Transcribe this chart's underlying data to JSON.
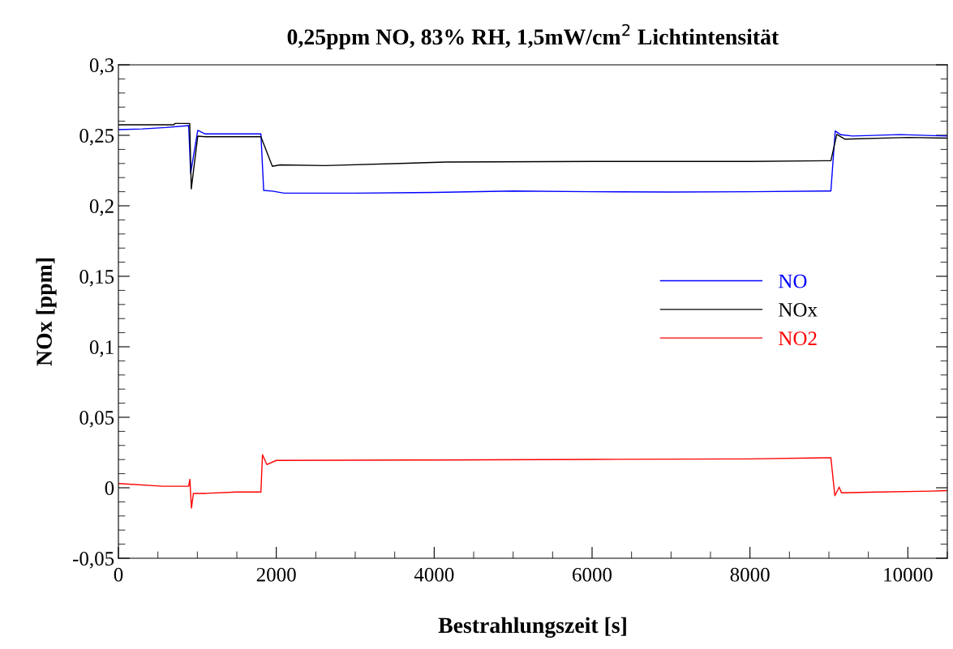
{
  "chart_data": {
    "type": "line",
    "title": "0,25ppm NO, 83% RH, 1,5mW/cm$^{2}$ Lichtintensität",
    "xlabel": "Bestrahlungszeit [s]",
    "ylabel": "NOx [ppm]",
    "xlim": [
      0,
      10500
    ],
    "xticks": [
      0,
      2000,
      4000,
      6000,
      8000,
      10000
    ],
    "ylim": [
      -0.05,
      0.3
    ],
    "yticks": [
      {
        "value": -0.05,
        "label": "-0,05"
      },
      0,
      {
        "value": 0.05,
        "label": "0,05"
      },
      {
        "value": 0.1,
        "label": "0,1"
      },
      {
        "value": 0.15,
        "label": "0,15"
      },
      {
        "value": 0.2,
        "label": "0,2"
      },
      {
        "value": 0.25,
        "label": "0,25"
      },
      {
        "value": 0.3,
        "label": "0,3"
      }
    ],
    "grid": false,
    "legend": "center right",
    "line_style": "solid",
    "marker": "none",
    "series": [
      {
        "name": "NO",
        "color": "#0000ff",
        "x": [
          0,
          300,
          600,
          890,
          915,
          1005,
          1100,
          1805,
          1840,
          1950,
          2100,
          3000,
          4000,
          5000,
          6000,
          7000,
          8000,
          9025,
          9080,
          9150,
          9300,
          9900,
          10500
        ],
        "values": [
          0.254,
          0.2545,
          0.2555,
          0.2569,
          0.223,
          0.2535,
          0.251,
          0.251,
          0.2109,
          0.2104,
          0.209,
          0.209,
          0.2095,
          0.2105,
          0.21,
          0.2098,
          0.21,
          0.2105,
          0.2531,
          0.2504,
          0.2495,
          0.2505,
          0.2495
        ]
      },
      {
        "name": "NOx",
        "color": "#000000",
        "x": [
          0,
          700,
          718,
          903,
          923,
          1005,
          1100,
          1805,
          1950,
          2050,
          2615,
          4150,
          6000,
          8000,
          9025,
          9100,
          9200,
          10000,
          10500
        ],
        "values": [
          0.2575,
          0.2575,
          0.2584,
          0.2584,
          0.212,
          0.2494,
          0.249,
          0.249,
          0.228,
          0.229,
          0.2285,
          0.231,
          0.2315,
          0.2315,
          0.232,
          0.2506,
          0.2473,
          0.2485,
          0.248
        ]
      },
      {
        "name": "NO2",
        "color": "#ff0000",
        "x": [
          0,
          565,
          890,
          905,
          925,
          950,
          1100,
          1500,
          1805,
          1825,
          1880,
          2000,
          4000,
          6000,
          8000,
          9025,
          9075,
          9130,
          9160,
          9500,
          10300,
          10500
        ],
        "values": [
          0.003,
          0.0011,
          0.0011,
          0.006,
          -0.0144,
          -0.004,
          -0.004,
          -0.003,
          -0.003,
          0.0234,
          0.0165,
          0.0194,
          0.0197,
          0.0201,
          0.0205,
          0.0213,
          -0.0056,
          0.0004,
          -0.0036,
          -0.0032,
          -0.0024,
          -0.002
        ]
      }
    ]
  }
}
